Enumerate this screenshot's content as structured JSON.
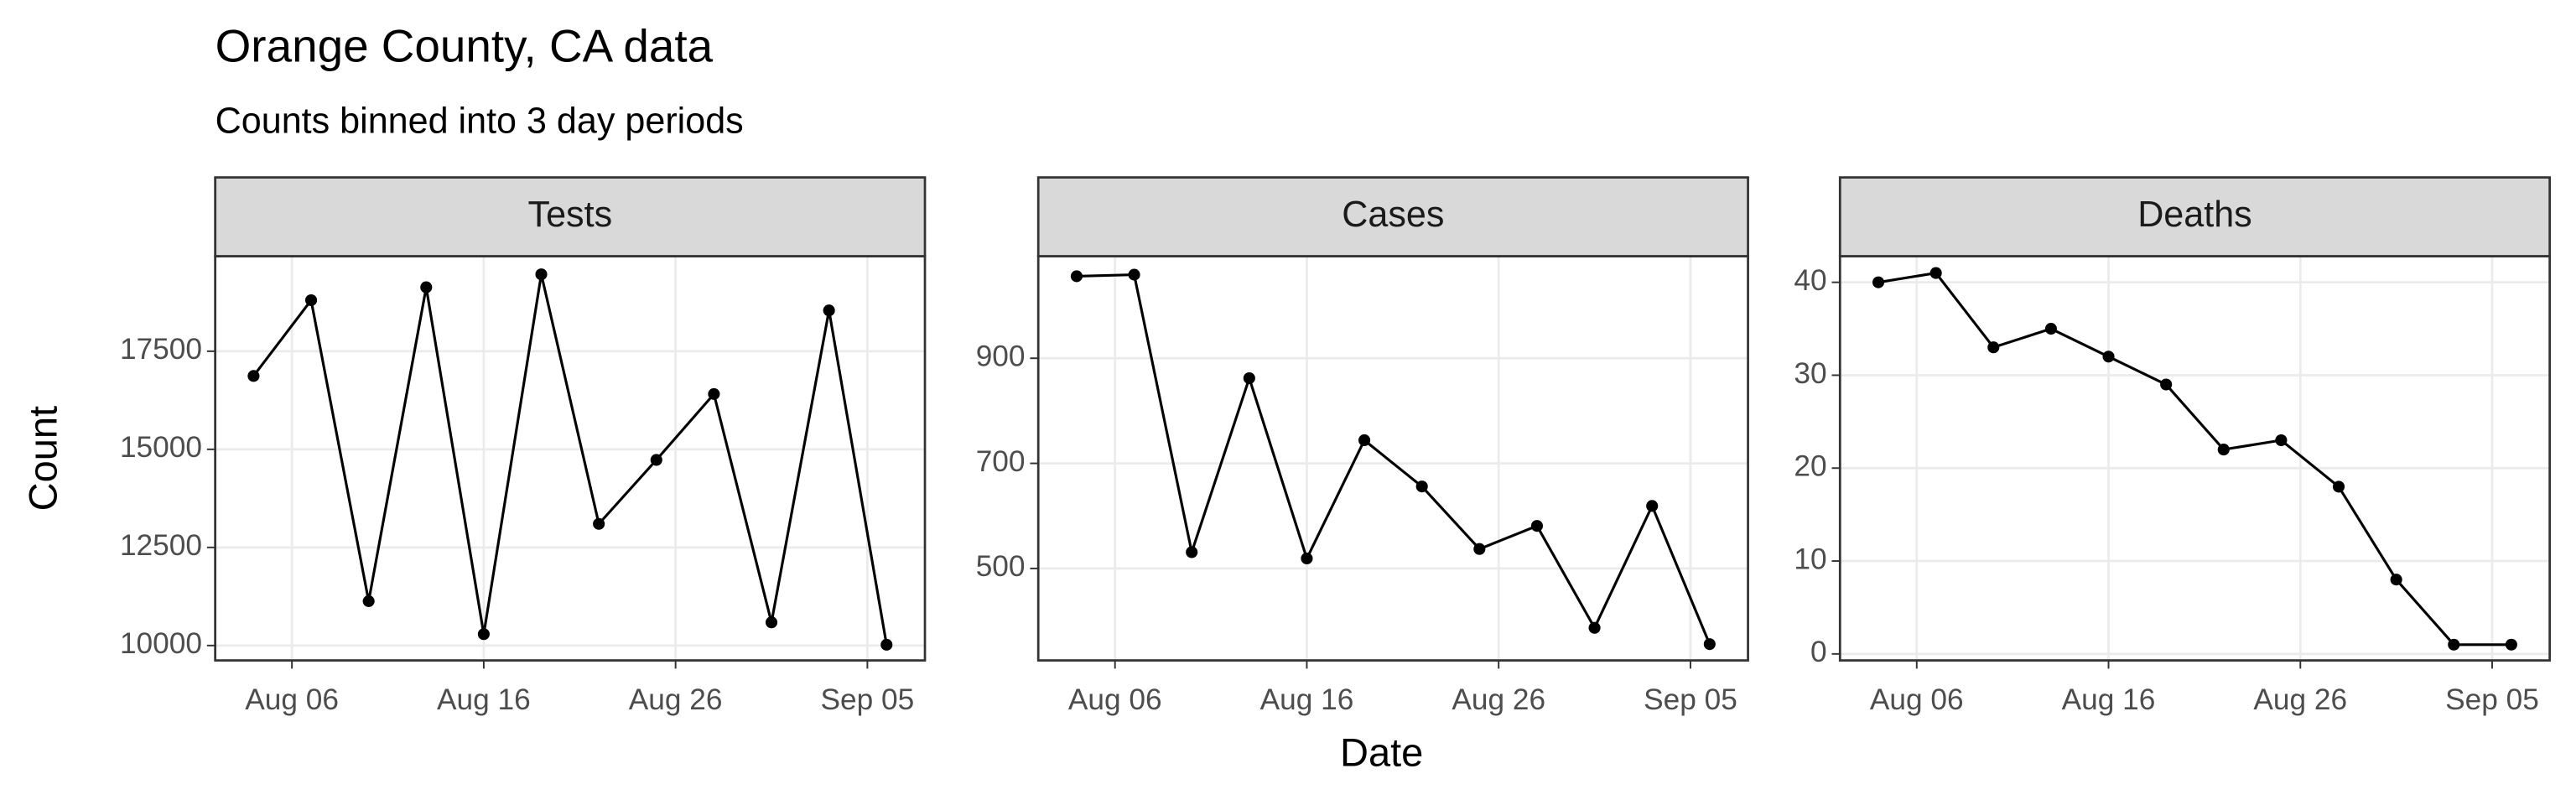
{
  "chart_data": {
    "type": "line",
    "title": "Orange County, CA data",
    "subtitle": "Counts binned into 3 day periods",
    "xlabel": "Date",
    "ylabel": "Count",
    "color": "#000000",
    "grid": true,
    "x": [
      "Aug 04",
      "Aug 07",
      "Aug 10",
      "Aug 13",
      "Aug 16",
      "Aug 19",
      "Aug 22",
      "Aug 25",
      "Aug 28",
      "Aug 31",
      "Sep 03",
      "Sep 06"
    ],
    "xlim": [
      "Aug 02",
      "Sep 08"
    ],
    "xticks": [
      "Aug 06",
      "Aug 16",
      "Aug 26",
      "Sep 05"
    ],
    "facets": [
      {
        "title": "Tests",
        "values": [
          16870,
          18800,
          11130,
          19130,
          10290,
          19460,
          13100,
          14730,
          16410,
          10590,
          18540,
          10020
        ],
        "ylim": [
          9620,
          19920
        ],
        "yticks": [
          10000,
          12500,
          15000,
          17500
        ]
      },
      {
        "title": "Cases",
        "values": [
          1056,
          1059,
          531,
          862,
          519,
          744,
          656,
          537,
          581,
          387,
          619,
          356
        ],
        "ylim": [
          325,
          1094
        ],
        "yticks": [
          500,
          700,
          900
        ]
      },
      {
        "title": "Deaths",
        "values": [
          40,
          41,
          33,
          35,
          32,
          29,
          22,
          23,
          18,
          8,
          1,
          1
        ],
        "ylim": [
          -0.7,
          42.8
        ],
        "yticks": [
          0,
          10,
          20,
          30,
          40
        ]
      }
    ]
  }
}
